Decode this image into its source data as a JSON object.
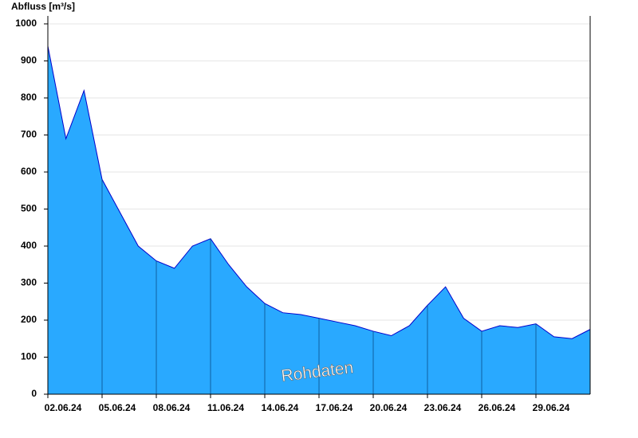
{
  "chart_data": {
    "type": "area",
    "title": "Abfluss [m³/s]",
    "annotation": "Rohdaten",
    "color": "#29a9ff",
    "line_color": "#0000cc",
    "x": [
      "02.06.24",
      "03.06.24",
      "04.06.24",
      "05.06.24",
      "06.06.24",
      "07.06.24",
      "08.06.24",
      "09.06.24",
      "10.06.24",
      "11.06.24",
      "12.06.24",
      "13.06.24",
      "14.06.24",
      "15.06.24",
      "16.06.24",
      "17.06.24",
      "18.06.24",
      "19.06.24",
      "20.06.24",
      "21.06.24",
      "22.06.24",
      "23.06.24",
      "24.06.24",
      "25.06.24",
      "26.06.24",
      "27.06.24",
      "28.06.24",
      "29.06.24",
      "30.06.24",
      "01.07.24",
      "02.07.24"
    ],
    "values": [
      940,
      690,
      820,
      580,
      490,
      400,
      360,
      340,
      400,
      420,
      350,
      290,
      245,
      220,
      215,
      205,
      195,
      185,
      170,
      158,
      185,
      240,
      290,
      205,
      170,
      185,
      180,
      190,
      155,
      150,
      175
    ],
    "xticks": [
      "02.06.24",
      "05.06.24",
      "08.06.24",
      "11.06.24",
      "14.06.24",
      "17.06.24",
      "20.06.24",
      "23.06.24",
      "26.06.24",
      "29.06.24"
    ],
    "ylim": [
      0,
      1015
    ],
    "yticks": [
      0,
      100,
      200,
      300,
      400,
      500,
      600,
      700,
      800,
      900,
      1000
    ],
    "grid": true
  }
}
